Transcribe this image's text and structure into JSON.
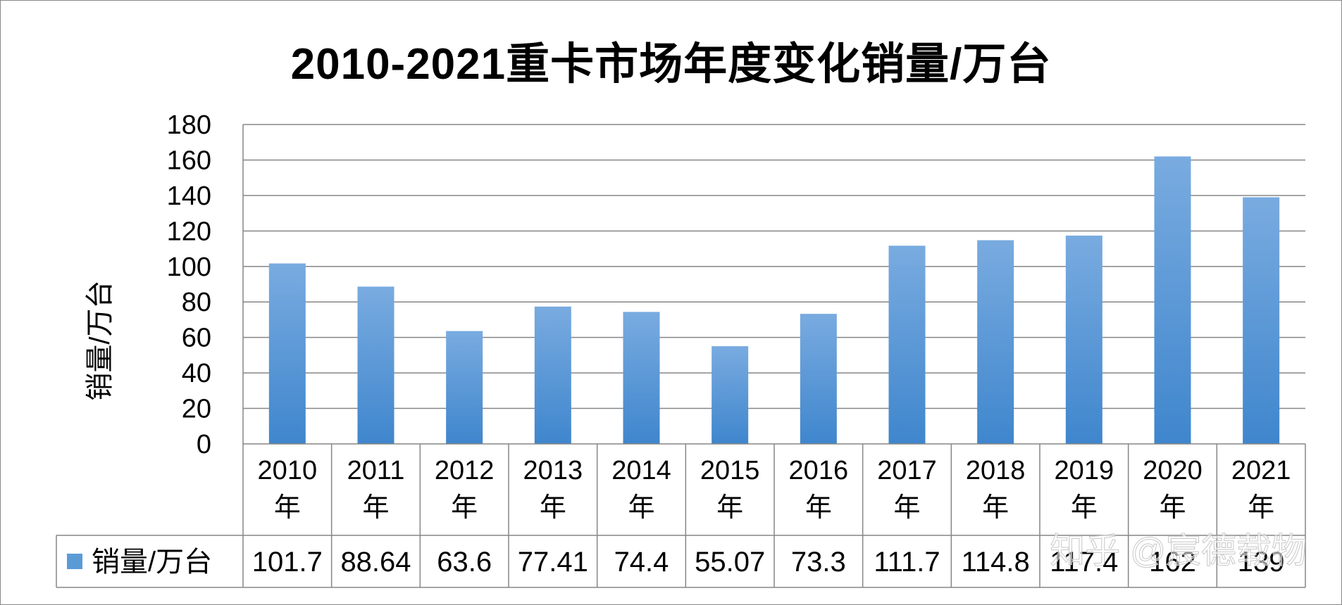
{
  "chart_data": {
    "type": "bar",
    "title": "2010-2021重卡市场年度变化销量/万台",
    "ylabel": "销量/万台",
    "xlabel": "",
    "ylim": [
      0,
      180
    ],
    "ytick_step": 20,
    "yticks": [
      "0",
      "20",
      "40",
      "60",
      "80",
      "100",
      "120",
      "140",
      "160",
      "180"
    ],
    "grid": true,
    "legend_position": "bottom-left (data table)",
    "categories": [
      {
        "year": "2010",
        "suffix": "年"
      },
      {
        "year": "2011",
        "suffix": "年"
      },
      {
        "year": "2012",
        "suffix": "年"
      },
      {
        "year": "2013",
        "suffix": "年"
      },
      {
        "year": "2014",
        "suffix": "年"
      },
      {
        "year": "2015",
        "suffix": "年"
      },
      {
        "year": "2016",
        "suffix": "年"
      },
      {
        "year": "2017",
        "suffix": "年"
      },
      {
        "year": "2018",
        "suffix": "年"
      },
      {
        "year": "2019",
        "suffix": "年"
      },
      {
        "year": "2020",
        "suffix": "年"
      },
      {
        "year": "2021",
        "suffix": "年"
      }
    ],
    "series": [
      {
        "name": "销量/万台",
        "color": "#5b9bd5",
        "values": [
          101.7,
          88.64,
          63.6,
          77.41,
          74.4,
          55.07,
          73.3,
          111.7,
          114.8,
          117.4,
          162,
          139
        ],
        "labels": [
          "101.7",
          "88.64",
          "63.6",
          "77.41",
          "74.4",
          "55.07",
          "73.3",
          "111.7",
          "114.8",
          "117.4",
          "162",
          "139"
        ]
      }
    ]
  },
  "watermark": "知乎 @宸德载物",
  "colors": {
    "bar_light": "#79abe0",
    "bar_dark": "#3f86cd",
    "grid": "#868686",
    "frame": "#888888"
  }
}
